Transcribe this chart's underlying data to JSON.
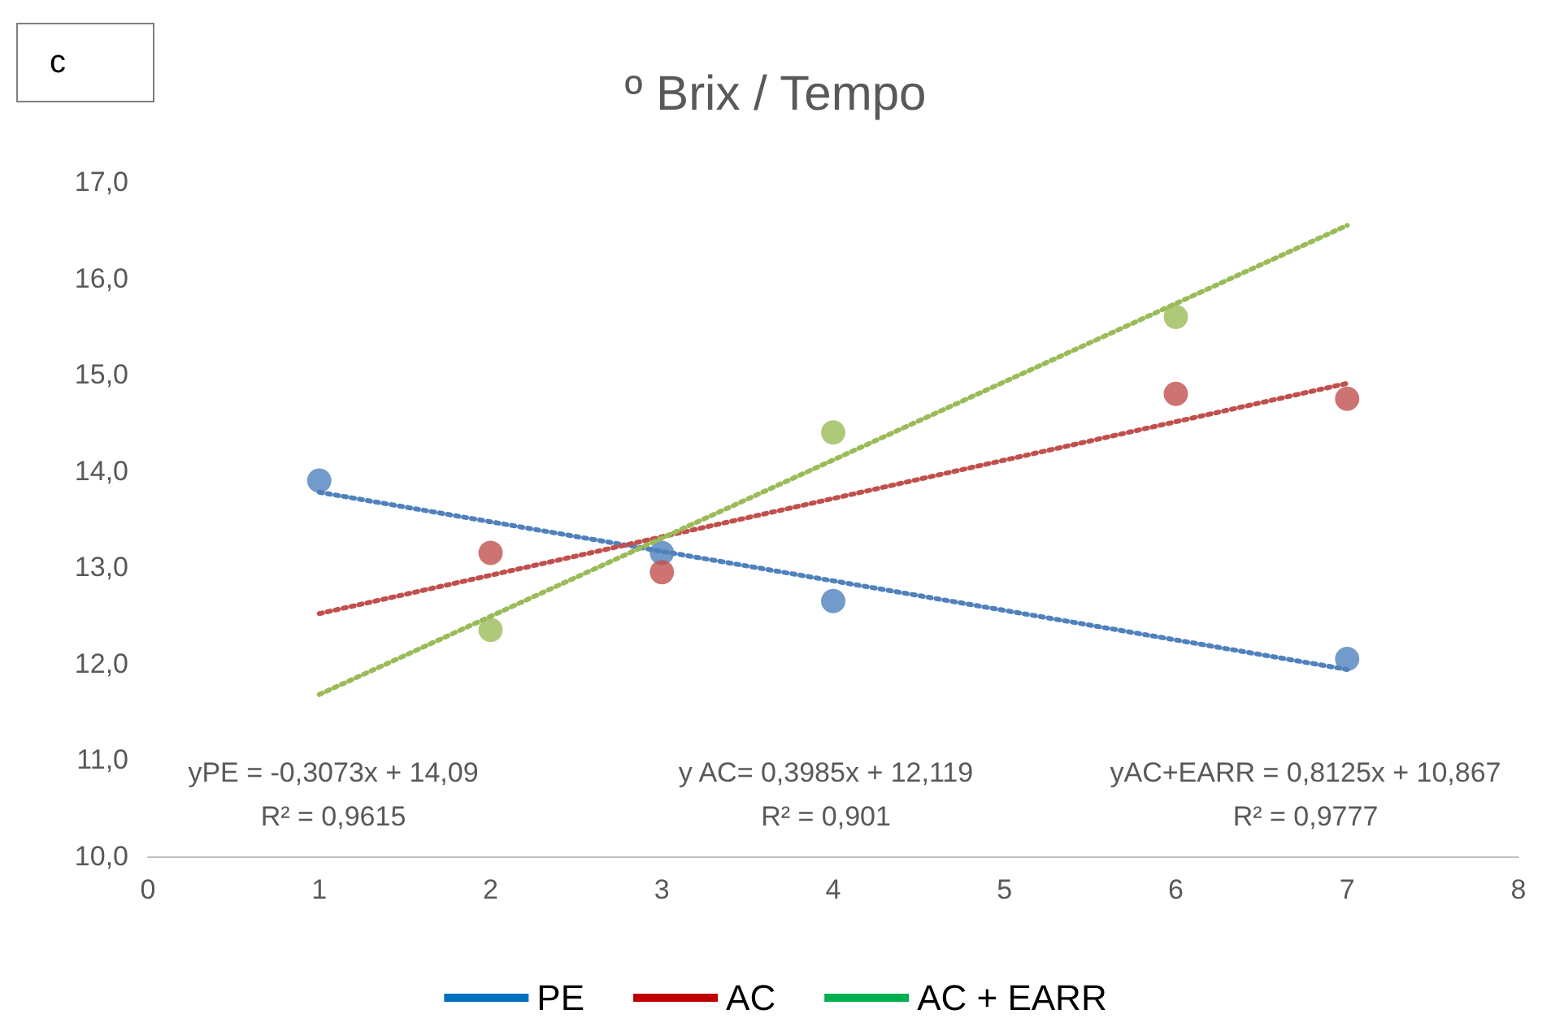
{
  "chart_data": {
    "type": "scatter",
    "title": "º Brix / Tempo",
    "annotations": [
      "c",
      "yPE = -0,3073x + 14,09\nR² = 0,9615",
      "y AC= 0,3985x + 12,119\nR² = 0,901",
      "yAC+EARR = 0,8125x + 10,867\nR² = 0,9777"
    ],
    "xlim": [
      0,
      8
    ],
    "xticks": [
      0,
      1,
      2,
      3,
      4,
      5,
      6,
      7,
      8
    ],
    "ylim": [
      10,
      17
    ],
    "yticks": [
      {
        "value": 10,
        "label": "10,0"
      },
      {
        "value": 11,
        "label": "11,0"
      },
      {
        "value": 12,
        "label": "12,0"
      },
      {
        "value": 13,
        "label": "13,0"
      },
      {
        "value": 14,
        "label": "14,0"
      },
      {
        "value": 15,
        "label": "15,0"
      },
      {
        "value": 16,
        "label": "16,0"
      },
      {
        "value": 17,
        "label": "17,0"
      }
    ],
    "grid": false,
    "legend": "bottom",
    "marker": "circle",
    "series": [
      {
        "color": "#4f81bd",
        "x": [
          1,
          3,
          4,
          7
        ],
        "values": [
          13.9,
          13.15,
          12.65,
          12.05
        ]
      },
      {
        "color": "#c0504d",
        "x": [
          2,
          3,
          6,
          7
        ],
        "values": [
          13.15,
          12.95,
          14.8,
          14.75
        ]
      },
      {
        "color": "#9bbb59",
        "x": [
          2,
          4,
          6
        ],
        "values": [
          12.35,
          14.4,
          15.6
        ]
      },
      {
        "type": "line",
        "line_style": "dotted",
        "marker": "none",
        "color": "#4f81bd",
        "x": [
          1,
          7
        ],
        "values": [
          13.78,
          11.94
        ]
      },
      {
        "type": "line",
        "line_style": "dotted",
        "marker": "none",
        "color": "#c0504d",
        "x": [
          1,
          7
        ],
        "values": [
          12.52,
          14.91
        ]
      },
      {
        "type": "line",
        "line_style": "dotted",
        "marker": "none",
        "color": "#9bbb59",
        "x": [
          1,
          7
        ],
        "values": [
          11.68,
          16.55
        ]
      },
      {
        "type": "line",
        "name": "PE",
        "color": "#0070c0"
      },
      {
        "type": "line",
        "name": "AC",
        "color": "#c00000"
      },
      {
        "type": "line",
        "name": "AC + EARR",
        "color": "#00b050"
      }
    ]
  }
}
